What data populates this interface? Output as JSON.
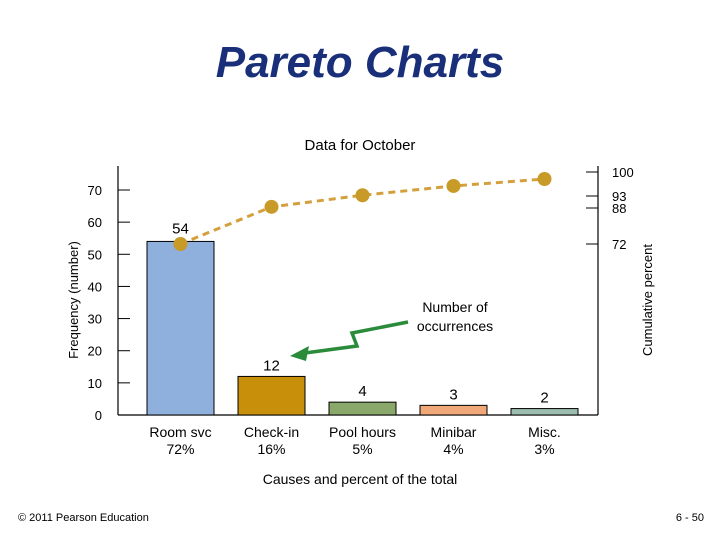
{
  "slide": {
    "title": "Pareto Charts",
    "footer_left": "© 2011 Pearson Education",
    "footer_right": "6 - 50"
  },
  "colors": {
    "title": "#1a2f7a",
    "line": "#d4a03c",
    "point": "#c89a28",
    "arrow": "#2a8c3a"
  },
  "chart_data": {
    "type": "bar",
    "title": "Data for October",
    "xlabel": "Causes and percent of the total",
    "ylabel": "Frequency (number)",
    "y2label": "Cumulative percent",
    "ylim": [
      0,
      70
    ],
    "yticks": [
      0,
      10,
      20,
      30,
      40,
      50,
      60,
      70
    ],
    "y2ticks": [
      "72",
      "88",
      "93",
      "100"
    ],
    "annotation": "Number of occurrences",
    "categories": [
      {
        "name": "Room svc",
        "percent": "72%",
        "value": 54,
        "label": "54",
        "color": "#8fb0dc"
      },
      {
        "name": "Check-in",
        "percent": "16%",
        "value": 12,
        "label": "12",
        "color": "#c8900a"
      },
      {
        "name": "Pool hours",
        "percent": "5%",
        "value": 4,
        "label": "4",
        "color": "#8aa86a"
      },
      {
        "name": "Minibar",
        "percent": "4%",
        "value": 3,
        "label": "3",
        "color": "#f0a878"
      },
      {
        "name": "Misc.",
        "percent": "3%",
        "value": 2,
        "label": "2",
        "color": "#9cbcb0"
      }
    ],
    "cumulative_percent": [
      72,
      88,
      93,
      97,
      100
    ]
  }
}
